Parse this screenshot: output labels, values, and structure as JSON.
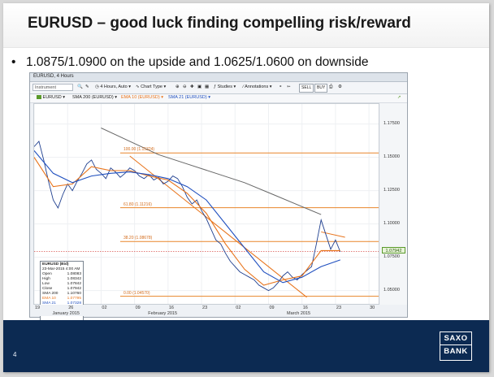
{
  "slide": {
    "title": "EURUSD – good luck finding compelling risk/reward",
    "bullet_marker": "•",
    "bullet_text": "1.0875/1.0900 on the upside  and  1.0625/1.0600 on downside",
    "page_number": "4",
    "logo_top": "SAXO",
    "logo_bottom": "BANK",
    "footer_color": "#0c2a52"
  },
  "chart_window": {
    "title": "EURUSD, 4 Hours",
    "toolbar": {
      "instrument_placeholder": "Instrument",
      "timeframe": "4 Hours, Auto",
      "chart_type": "Chart Type",
      "studies": "Studies",
      "annotations": "Annotations",
      "sell": "SELL",
      "buy": "BUY"
    },
    "indicators": [
      {
        "label": "EURUSD",
        "color": "#1f3f8f"
      },
      {
        "label": "SMA 200 (EURUSD)",
        "color": "#333333"
      },
      {
        "label": "EMA 10 (EURUSD)",
        "color": "#e8731a"
      },
      {
        "label": "SMA 21 (EURUSD)",
        "color": "#1f4fbf"
      }
    ],
    "price_axis": [
      {
        "label": "1.17500",
        "value": 1.175
      },
      {
        "label": "1.15000",
        "value": 1.15
      },
      {
        "label": "1.12500",
        "value": 1.125
      },
      {
        "label": "1.10000",
        "value": 1.1
      },
      {
        "label": "1.07500",
        "value": 1.075
      },
      {
        "label": "1.05000",
        "value": 1.05
      }
    ],
    "current_price": "1.07942",
    "time_ticks": [
      "19",
      "26",
      "02",
      "09",
      "16",
      "23",
      "02",
      "09",
      "16",
      "23",
      "30"
    ],
    "months": [
      "January 2015",
      "February 2015",
      "March 2015"
    ],
    "fib_levels": [
      {
        "label": "100.00 (1.15324)",
        "price": 1.15324
      },
      {
        "label": "61.80 (1.11216)",
        "price": 1.11216
      },
      {
        "label": "38.20 (1.08678)",
        "price": 1.08678
      },
      {
        "label": "0.00 (1.04570)",
        "price": 1.0457
      }
    ],
    "data_box": {
      "header": "EURUSD (Bid)",
      "date": "23-Mar-2015 4:00 AM",
      "rows": [
        {
          "k": "Open",
          "v": "1.08083"
        },
        {
          "k": "High",
          "v": "1.08342"
        },
        {
          "k": "Low",
          "v": "1.07842"
        },
        {
          "k": "Close",
          "v": "1.07942"
        },
        {
          "k": "SMA 200",
          "v": "1.10760"
        },
        {
          "k": "EMA 10",
          "v": "1.07795"
        },
        {
          "k": "SMA 21",
          "v": "1.07328"
        }
      ]
    },
    "indicative_price_note": "INDICATIVE PRICE · Time Zone GMT"
  },
  "chart_data": {
    "type": "line",
    "symbol": "EURUSD",
    "timeframe": "4 Hours",
    "ylim": [
      1.04,
      1.19
    ],
    "x_range_days": [
      0,
      71
    ],
    "x_unit": "calendar days from 19 Jan 2015",
    "series": [
      {
        "name": "EURUSD",
        "color": "#1f3f8f",
        "x": [
          0,
          1,
          2,
          3,
          4,
          5,
          6,
          7,
          8,
          9,
          10,
          11,
          12,
          13,
          14,
          15,
          16,
          17,
          18,
          19,
          20,
          21,
          22,
          23,
          24,
          25,
          26,
          27,
          28,
          29,
          30,
          31,
          32,
          33,
          34,
          35,
          36,
          37,
          38,
          39,
          40,
          41,
          42,
          43,
          44,
          45,
          46,
          47,
          48,
          49,
          50,
          51,
          52,
          53,
          54,
          55,
          56,
          57,
          58,
          59,
          60,
          61,
          62,
          63,
          64
        ],
        "y": [
          1.158,
          1.162,
          1.148,
          1.132,
          1.118,
          1.112,
          1.122,
          1.13,
          1.125,
          1.132,
          1.138,
          1.145,
          1.148,
          1.141,
          1.138,
          1.134,
          1.142,
          1.139,
          1.135,
          1.138,
          1.142,
          1.14,
          1.136,
          1.134,
          1.137,
          1.133,
          1.135,
          1.13,
          1.132,
          1.136,
          1.134,
          1.128,
          1.12,
          1.115,
          1.118,
          1.11,
          1.104,
          1.096,
          1.088,
          1.085,
          1.078,
          1.072,
          1.068,
          1.064,
          1.062,
          1.06,
          1.058,
          1.054,
          1.052,
          1.05,
          1.052,
          1.056,
          1.061,
          1.064,
          1.06,
          1.058,
          1.062,
          1.065,
          1.068,
          1.085,
          1.103,
          1.092,
          1.081,
          1.088,
          1.079
        ]
      },
      {
        "name": "SMA 200",
        "color": "#666666",
        "x": [
          14,
          20,
          26,
          32,
          38,
          44,
          50,
          56,
          60
        ],
        "y": [
          1.172,
          1.162,
          1.152,
          1.145,
          1.138,
          1.131,
          1.122,
          1.113,
          1.107
        ]
      },
      {
        "name": "EMA 10",
        "color": "#e8731a",
        "x": [
          0,
          4,
          8,
          12,
          16,
          20,
          24,
          28,
          32,
          36,
          40,
          44,
          48,
          52,
          56,
          60,
          64
        ],
        "y": [
          1.15,
          1.128,
          1.13,
          1.143,
          1.14,
          1.14,
          1.136,
          1.133,
          1.123,
          1.108,
          1.085,
          1.066,
          1.054,
          1.058,
          1.061,
          1.08,
          1.08
        ]
      },
      {
        "name": "SMA 21",
        "color": "#1f4fbf",
        "x": [
          0,
          4,
          8,
          12,
          16,
          20,
          24,
          28,
          32,
          36,
          40,
          44,
          48,
          52,
          56,
          60,
          64
        ],
        "y": [
          1.155,
          1.138,
          1.131,
          1.136,
          1.138,
          1.139,
          1.137,
          1.134,
          1.128,
          1.118,
          1.1,
          1.082,
          1.064,
          1.056,
          1.06,
          1.068,
          1.073
        ]
      }
    ],
    "trendlines": [
      {
        "x": [
          20,
          57
        ],
        "y": [
          1.151,
          1.045
        ]
      },
      {
        "x": [
          60,
          65
        ],
        "y": [
          1.094,
          1.09
        ]
      }
    ],
    "dotted_level": 1.0794,
    "legend": "none",
    "grid": true
  }
}
